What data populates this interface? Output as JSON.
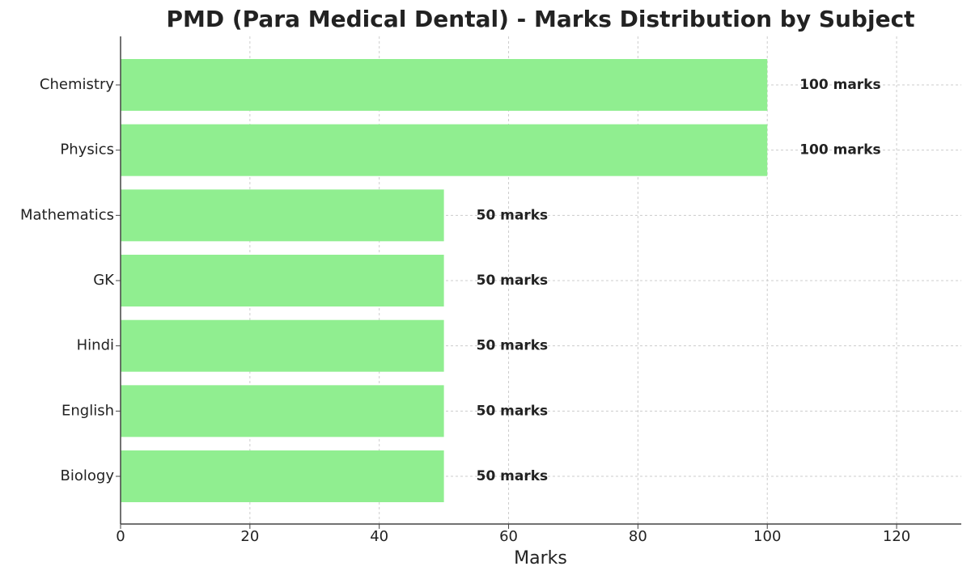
{
  "chart_data": {
    "type": "bar",
    "orientation": "horizontal",
    "title": "PMD (Para Medical Dental) - Marks Distribution by Subject",
    "x_label": "Marks",
    "categories": [
      "Chemistry",
      "Physics",
      "Mathematics",
      "GK",
      "Hindi",
      "English",
      "Biology"
    ],
    "values": [
      100,
      100,
      50,
      50,
      50,
      50,
      50
    ],
    "value_labels": [
      "100 marks",
      "100 marks",
      "50 marks",
      "50 marks",
      "50 marks",
      "50 marks",
      "50 marks"
    ],
    "color": "#90ee90",
    "xlim": [
      0,
      130
    ],
    "xticks": [
      0,
      20,
      40,
      60,
      80,
      100,
      120
    ],
    "grid": true
  }
}
